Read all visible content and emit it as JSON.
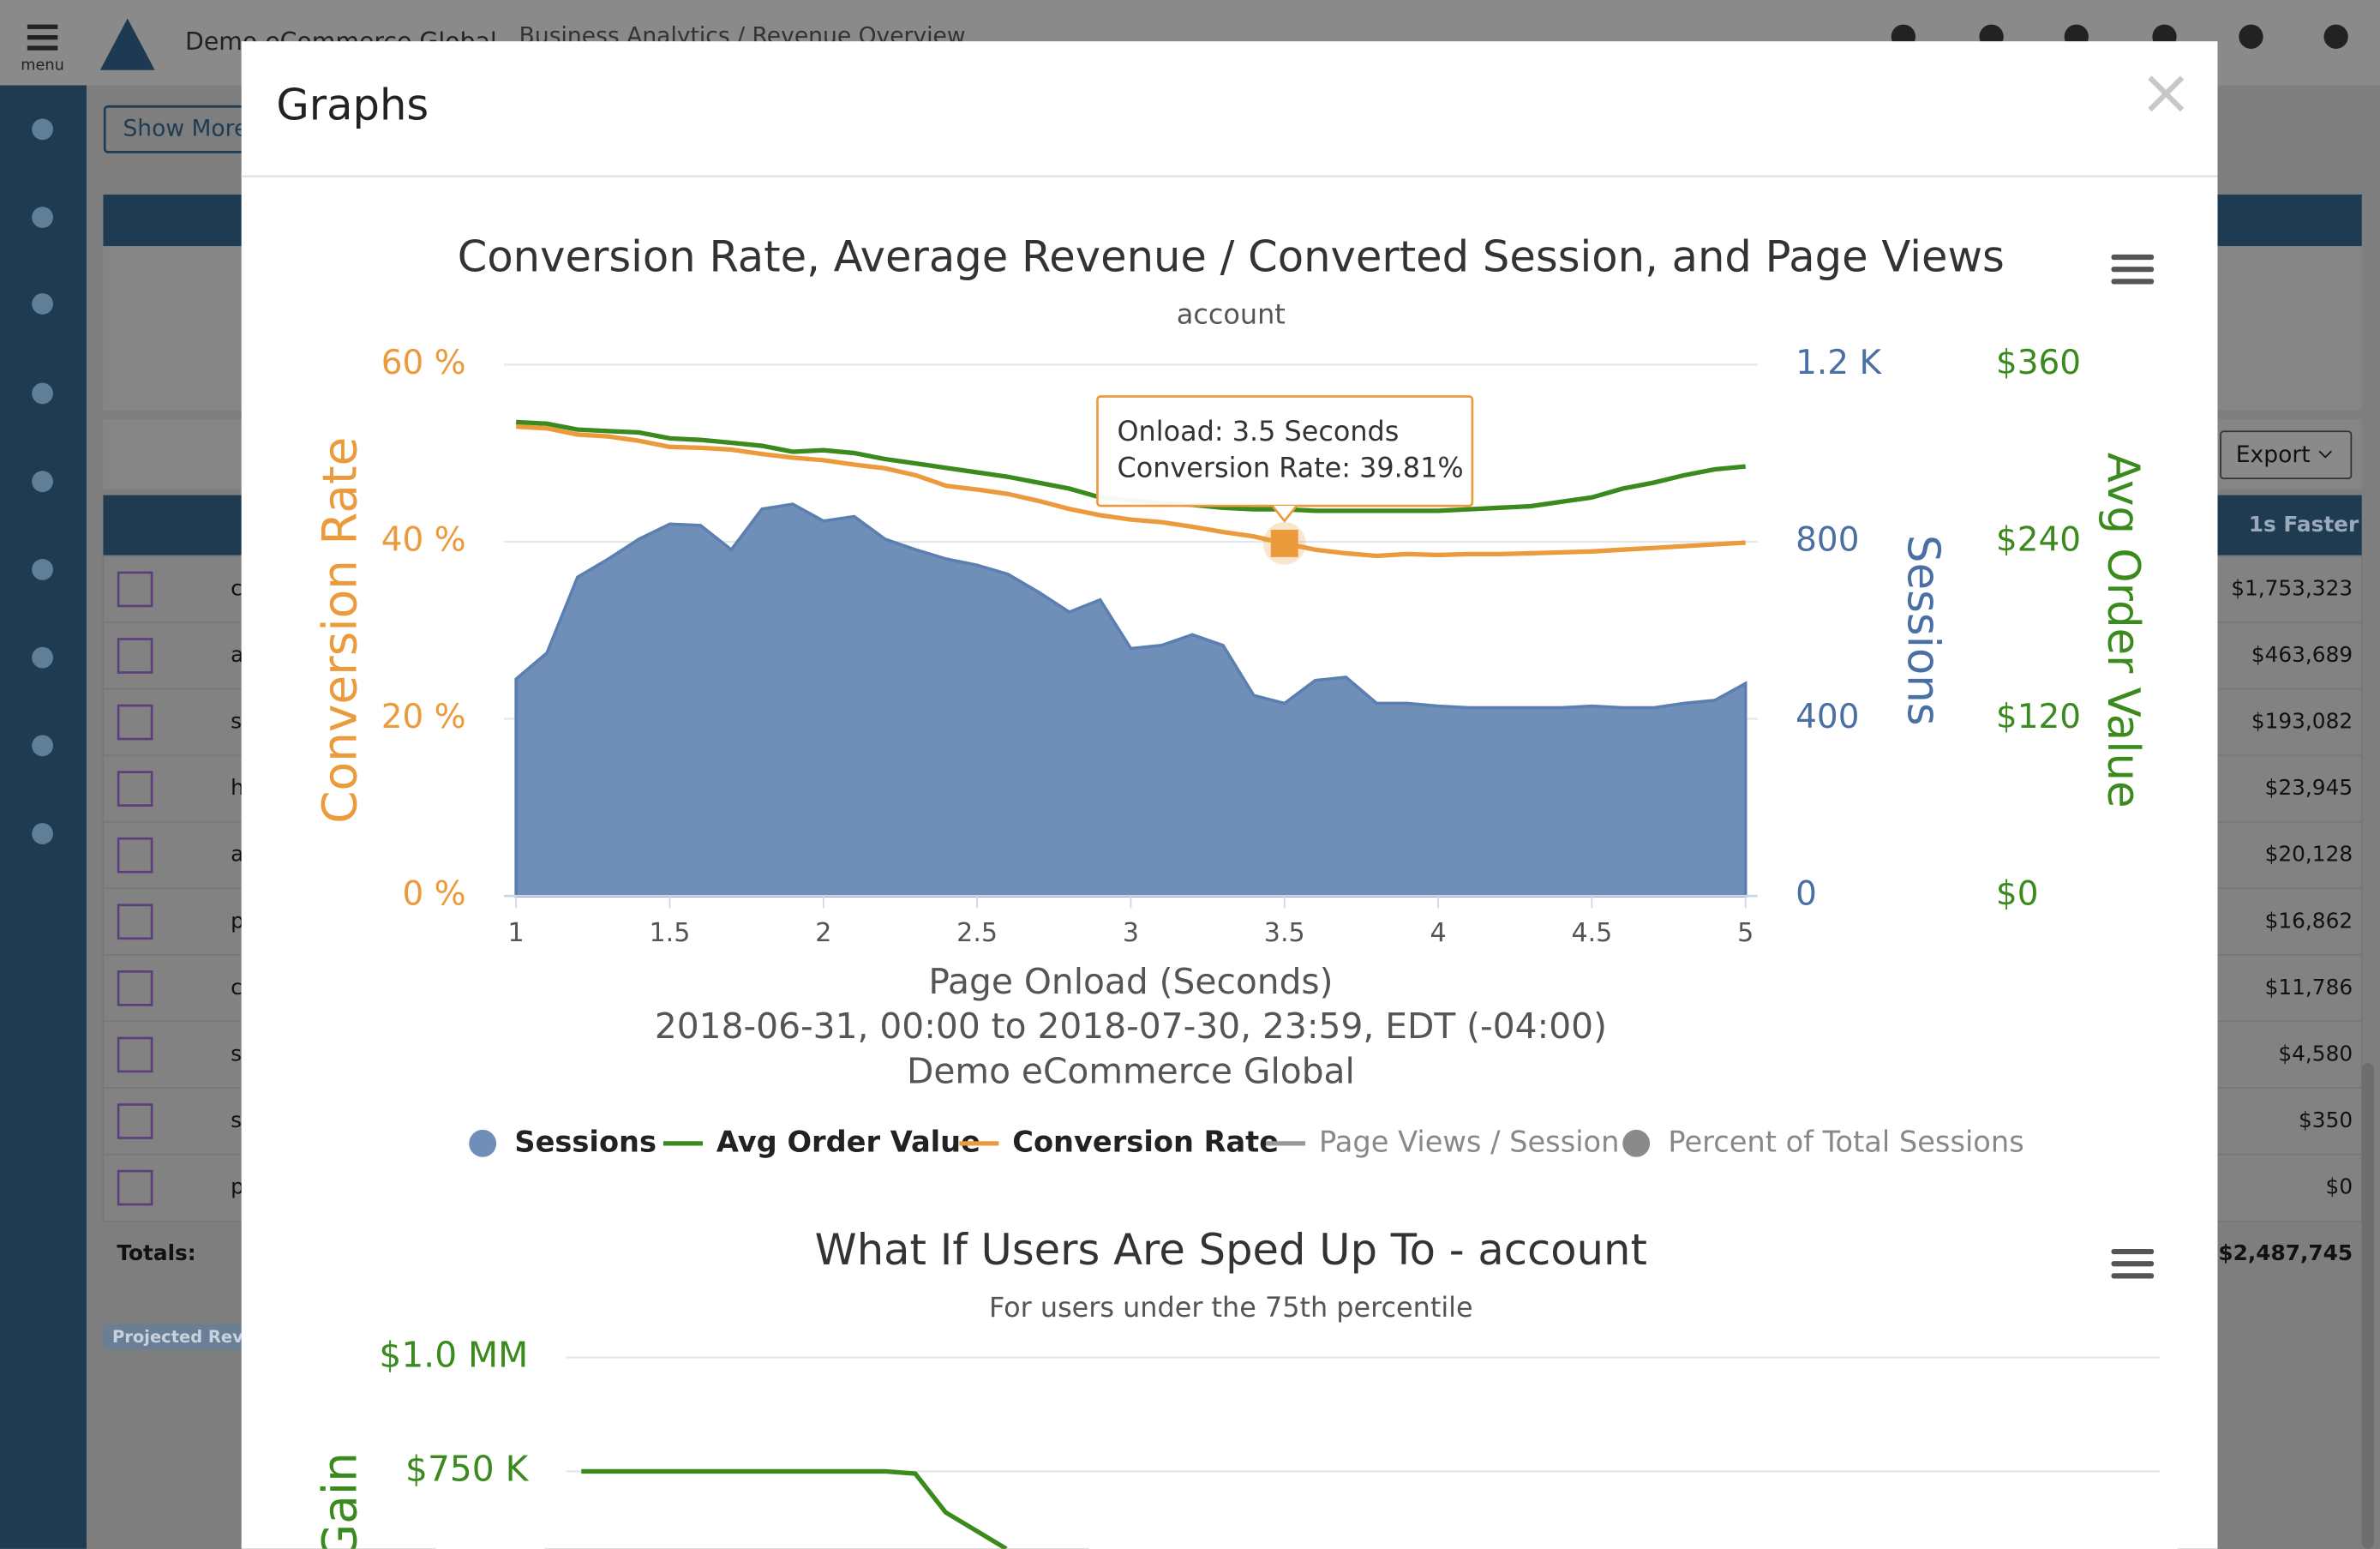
{
  "topbar": {
    "menu": "menu",
    "org": "Demo eCommerce Global",
    "breadcrumb": "Business Analytics / Revenue Overview"
  },
  "background": {
    "show_more": "Show More",
    "export": "Export",
    "column_header": "1s Faster",
    "rows": [
      {
        "name": "c",
        "value": "$1,753,323"
      },
      {
        "name": "a",
        "value": "$463,689"
      },
      {
        "name": "s",
        "value": "$193,082"
      },
      {
        "name": "h",
        "value": "$23,945"
      },
      {
        "name": "a",
        "value": "$20,128"
      },
      {
        "name": "p",
        "value": "$16,862"
      },
      {
        "name": "c",
        "value": "$11,786"
      },
      {
        "name": "s",
        "value": "$4,580"
      },
      {
        "name": "s",
        "value": "$350"
      },
      {
        "name": "p",
        "value": "$0"
      }
    ],
    "totals_label": "Totals:",
    "total": "$2,487,745",
    "projected": "Projected Reve"
  },
  "modal": {
    "title": "Graphs",
    "close": "×"
  },
  "chart_data": [
    {
      "type": "area-line",
      "title": "Conversion Rate, Average Revenue / Converted Session, and Page Views",
      "subtitle": "account",
      "x_label": [
        "Page Onload (Seconds)",
        "2018-06-31, 00:00 to 2018-07-30, 23:59, EDT (-04:00)",
        "Demo eCommerce Global"
      ],
      "y_label": "Conversion Rate",
      "y2_label": "Sessions",
      "y3_label": "Avg Order Value",
      "x": [
        1,
        1.1,
        1.2,
        1.3,
        1.4,
        1.5,
        1.6,
        1.7,
        1.8,
        1.9,
        2,
        2.1,
        2.2,
        2.3,
        2.4,
        2.5,
        2.6,
        2.7,
        2.8,
        2.9,
        3,
        3.1,
        3.2,
        3.3,
        3.4,
        3.5,
        3.6,
        3.7,
        3.8,
        3.9,
        4,
        4.1,
        4.2,
        4.3,
        4.4,
        4.5,
        4.6,
        4.7,
        4.8,
        4.9,
        5
      ],
      "xlim": [
        1,
        5
      ],
      "xticks": [
        1,
        1.5,
        2,
        2.5,
        3,
        3.5,
        4,
        4.5,
        5
      ],
      "ylim": [
        0,
        60
      ],
      "yticks": [
        {
          "value": 0,
          "label": "0 %"
        },
        {
          "value": 20,
          "label": "20 %"
        },
        {
          "value": 40,
          "label": "40 %"
        },
        {
          "value": 60,
          "label": "60 %"
        }
      ],
      "y2lim": [
        0,
        1200
      ],
      "y2ticks": [
        0,
        400,
        800,
        {
          "value": 1200,
          "label": "1.2 K"
        }
      ],
      "y3lim": [
        0,
        360
      ],
      "y3ticks": [
        {
          "value": 0,
          "label": "$0"
        },
        {
          "value": 120,
          "label": "$120"
        },
        {
          "value": 240,
          "label": "$240"
        },
        {
          "value": 360,
          "label": "$360"
        }
      ],
      "grid": true,
      "series": [
        {
          "name": "Sessions",
          "color": "#6f8fb8",
          "axis": "y2",
          "kind": "area",
          "values": [
            490,
            549,
            720,
            761,
            806,
            840,
            837,
            782,
            874,
            885,
            847,
            857,
            806,
            782,
            761,
            747,
            727,
            686,
            641,
            669,
            559,
            566,
            590,
            566,
            453,
            435,
            487,
            494,
            435,
            435,
            429,
            425,
            425,
            425,
            425,
            429,
            425,
            425,
            435,
            442,
            480
          ]
        },
        {
          "name": "Avg Order Value",
          "color": "#3a8a1e",
          "axis": "y3",
          "kind": "line",
          "values": [
            321,
            320,
            316,
            315,
            314,
            310,
            309,
            307,
            305,
            301,
            302,
            300,
            296,
            293,
            290,
            287,
            284,
            280,
            276,
            270,
            268,
            266,
            265,
            263,
            262,
            262,
            261,
            261,
            261,
            261,
            261,
            262,
            263,
            264,
            267,
            270,
            276,
            280,
            285,
            289,
            291
          ]
        },
        {
          "name": "Conversion Rate",
          "color": "#eb9a3c",
          "axis": "y",
          "kind": "line",
          "values": [
            53,
            52.8,
            52.1,
            51.9,
            51.4,
            50.7,
            50.6,
            50.4,
            49.9,
            49.5,
            49.2,
            48.7,
            48.3,
            47.5,
            46.3,
            45.9,
            45.4,
            44.6,
            43.7,
            43,
            42.5,
            42.2,
            41.7,
            41.1,
            40.6,
            39.81,
            39.1,
            38.7,
            38.4,
            38.6,
            38.5,
            38.6,
            38.6,
            38.7,
            38.8,
            38.9,
            39.1,
            39.3,
            39.5,
            39.7,
            39.9
          ]
        }
      ],
      "hidden_series": [
        {
          "name": "Page Views / Session",
          "color": "#999999",
          "kind": "line"
        },
        {
          "name": "Percent of Total Sessions",
          "color": "#8a8a8a",
          "kind": "dot"
        }
      ],
      "tooltip": [
        "Onload: 3.5 Seconds",
        "Conversion Rate: 39.81%"
      ]
    },
    {
      "type": "line",
      "title": "What If Users Are Sped Up To - account",
      "subtitle": "For users under the 75th percentile",
      "y_label": "Gain",
      "categories": [
        null,
        null,
        null,
        null,
        null,
        null,
        null,
        null,
        null,
        null,
        null,
        null,
        null,
        null,
        null
      ],
      "values": [
        750000,
        750000,
        750000,
        750000,
        750000,
        750000,
        750000,
        750000,
        750000,
        750000,
        750000,
        745000,
        660000,
        620000,
        580000
      ],
      "color": "#3a8a1e",
      "ylim": [
        500000,
        1000000
      ],
      "yticks": [
        {
          "value": 750000,
          "label": "$750 K"
        },
        {
          "value": 1000000,
          "label": "$1.0 MM"
        }
      ],
      "grid": true
    }
  ]
}
